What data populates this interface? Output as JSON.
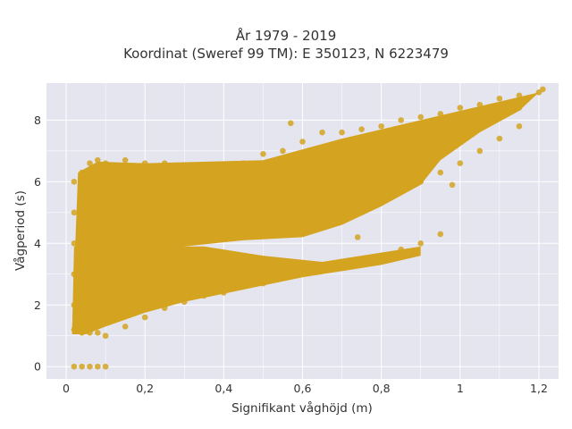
{
  "chart_data": {
    "type": "scatter",
    "title": "År 1979 - 2019",
    "subtitle": "Koordinat (Sweref 99 TM): E 350123, N 6223479",
    "xlabel": "Signifikant våghöjd (m)",
    "ylabel": "Vågperiod (s)",
    "xlim": [
      -0.05,
      1.25
    ],
    "ylim": [
      -0.4,
      9.2
    ],
    "xticks": [
      0,
      0.2,
      0.4,
      0.6,
      0.8,
      1,
      1.2
    ],
    "xtick_labels": [
      "0",
      "0,2",
      "0,4",
      "0,6",
      "0,8",
      "1",
      "1,2"
    ],
    "yticks": [
      0,
      2,
      4,
      6,
      8
    ],
    "ytick_labels": [
      "0",
      "2",
      "4",
      "6",
      "8"
    ],
    "grid": true,
    "marker_color": "#D4A420",
    "background_color": "#E5E5F0",
    "points": [
      [
        0.02,
        1.2
      ],
      [
        0.02,
        2.0
      ],
      [
        0.02,
        3.0
      ],
      [
        0.02,
        4.0
      ],
      [
        0.02,
        5.0
      ],
      [
        0.02,
        6.0
      ],
      [
        0.04,
        1.1
      ],
      [
        0.04,
        2.5
      ],
      [
        0.04,
        4.5
      ],
      [
        0.04,
        6.3
      ],
      [
        0.06,
        1.1
      ],
      [
        0.06,
        3.5
      ],
      [
        0.06,
        5.5
      ],
      [
        0.06,
        6.6
      ],
      [
        0.08,
        1.1
      ],
      [
        0.08,
        2.2
      ],
      [
        0.08,
        4.2
      ],
      [
        0.08,
        6.7
      ],
      [
        0.1,
        1.0
      ],
      [
        0.1,
        3.0
      ],
      [
        0.1,
        5.0
      ],
      [
        0.1,
        6.6
      ],
      [
        0.15,
        1.3
      ],
      [
        0.15,
        3.2
      ],
      [
        0.15,
        5.4
      ],
      [
        0.15,
        6.7
      ],
      [
        0.2,
        1.6
      ],
      [
        0.2,
        3.5
      ],
      [
        0.2,
        5.6
      ],
      [
        0.2,
        6.6
      ],
      [
        0.25,
        1.9
      ],
      [
        0.25,
        3.9
      ],
      [
        0.25,
        5.5
      ],
      [
        0.25,
        6.6
      ],
      [
        0.3,
        2.1
      ],
      [
        0.3,
        4.0
      ],
      [
        0.3,
        5.6
      ],
      [
        0.3,
        6.5
      ],
      [
        0.35,
        2.3
      ],
      [
        0.35,
        4.2
      ],
      [
        0.35,
        5.8
      ],
      [
        0.35,
        6.5
      ],
      [
        0.4,
        2.4
      ],
      [
        0.4,
        4.3
      ],
      [
        0.4,
        5.9
      ],
      [
        0.4,
        6.5
      ],
      [
        0.45,
        2.6
      ],
      [
        0.45,
        4.4
      ],
      [
        0.45,
        6.0
      ],
      [
        0.45,
        6.6
      ],
      [
        0.5,
        2.7
      ],
      [
        0.5,
        4.4
      ],
      [
        0.5,
        6.1
      ],
      [
        0.5,
        6.9
      ],
      [
        0.55,
        2.9
      ],
      [
        0.55,
        4.6
      ],
      [
        0.55,
        6.2
      ],
      [
        0.55,
        7.0
      ],
      [
        0.6,
        3.0
      ],
      [
        0.6,
        4.7
      ],
      [
        0.6,
        6.4
      ],
      [
        0.6,
        7.3
      ],
      [
        0.65,
        3.2
      ],
      [
        0.65,
        4.9
      ],
      [
        0.65,
        6.6
      ],
      [
        0.65,
        7.6
      ],
      [
        0.7,
        3.3
      ],
      [
        0.7,
        5.1
      ],
      [
        0.7,
        6.8
      ],
      [
        0.7,
        7.6
      ],
      [
        0.75,
        3.5
      ],
      [
        0.75,
        5.3
      ],
      [
        0.75,
        7.0
      ],
      [
        0.75,
        7.7
      ],
      [
        0.8,
        3.6
      ],
      [
        0.8,
        5.5
      ],
      [
        0.8,
        7.1
      ],
      [
        0.8,
        7.8
      ],
      [
        0.85,
        3.8
      ],
      [
        0.85,
        5.7
      ],
      [
        0.85,
        7.3
      ],
      [
        0.85,
        8.0
      ],
      [
        0.9,
        4.0
      ],
      [
        0.9,
        6.0
      ],
      [
        0.9,
        7.4
      ],
      [
        0.9,
        8.1
      ],
      [
        0.95,
        6.3
      ],
      [
        0.95,
        7.5
      ],
      [
        0.95,
        8.2
      ],
      [
        1.0,
        6.6
      ],
      [
        1.0,
        7.7
      ],
      [
        1.0,
        8.4
      ],
      [
        1.05,
        7.0
      ],
      [
        1.05,
        7.9
      ],
      [
        1.05,
        8.5
      ],
      [
        1.1,
        7.4
      ],
      [
        1.1,
        8.1
      ],
      [
        1.1,
        8.7
      ],
      [
        1.15,
        7.8
      ],
      [
        1.15,
        8.4
      ],
      [
        1.15,
        8.8
      ],
      [
        1.2,
        8.9
      ],
      [
        1.21,
        9.0
      ],
      [
        0.74,
        4.2
      ],
      [
        0.95,
        4.3
      ],
      [
        0.98,
        5.9
      ],
      [
        0.57,
        7.9
      ],
      [
        0.02,
        0.0
      ],
      [
        0.04,
        0.0
      ],
      [
        0.06,
        0.0
      ],
      [
        0.08,
        0.0
      ],
      [
        0.1,
        0.0
      ]
    ]
  }
}
